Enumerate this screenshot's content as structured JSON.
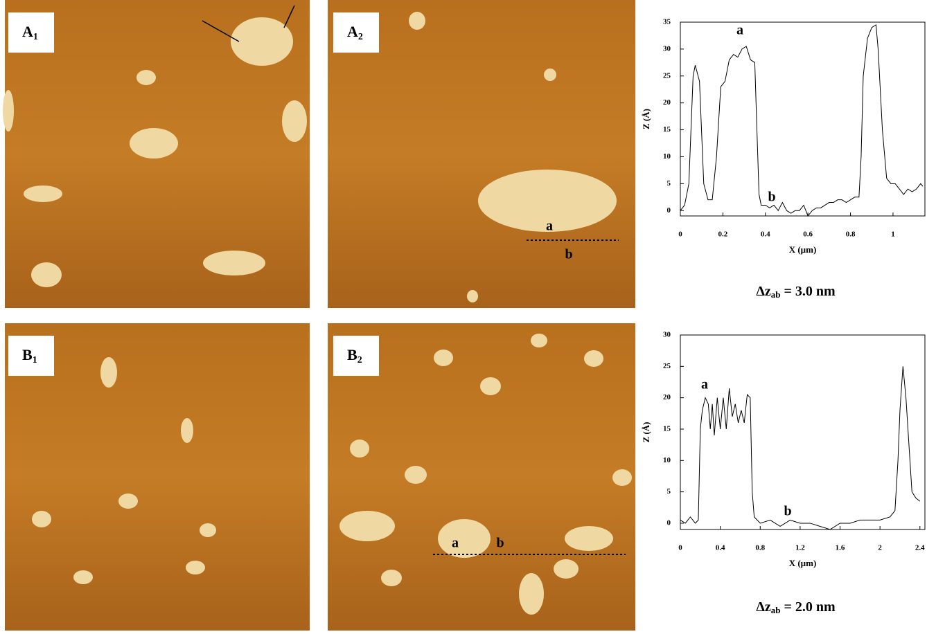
{
  "panels": [
    {
      "label": "A",
      "sub": "1"
    },
    {
      "label": "A",
      "sub": "2",
      "marks": [
        "a",
        "b"
      ]
    },
    {
      "label": "B",
      "sub": "1"
    },
    {
      "label": "B",
      "sub": "2",
      "marks": [
        "a",
        "b"
      ]
    }
  ],
  "chart_data": [
    {
      "type": "line",
      "xlabel": "X (µm)",
      "ylabel": "Z (Å)",
      "xlim": [
        0,
        1.15
      ],
      "xticks": [
        0,
        0.2,
        0.4,
        0.6,
        0.8,
        1
      ],
      "ylim": [
        -1,
        35
      ],
      "yticks": [
        0,
        5,
        10,
        15,
        20,
        25,
        30,
        35
      ],
      "annotations": [
        "a",
        "b"
      ],
      "note": {
        "prefix": "Δz",
        "sub": "ab",
        "suffix": "= 3.0 nm"
      },
      "color": "#000000",
      "x": [
        0,
        0.02,
        0.04,
        0.06,
        0.07,
        0.09,
        0.11,
        0.13,
        0.15,
        0.17,
        0.19,
        0.21,
        0.23,
        0.25,
        0.27,
        0.29,
        0.31,
        0.33,
        0.35,
        0.36,
        0.37,
        0.38,
        0.4,
        0.42,
        0.44,
        0.46,
        0.48,
        0.5,
        0.52,
        0.54,
        0.56,
        0.58,
        0.6,
        0.62,
        0.64,
        0.66,
        0.68,
        0.7,
        0.72,
        0.74,
        0.76,
        0.78,
        0.8,
        0.82,
        0.84,
        0.85,
        0.86,
        0.88,
        0.9,
        0.92,
        0.93,
        0.95,
        0.97,
        0.99,
        1.01,
        1.03,
        1.05,
        1.07,
        1.09,
        1.11,
        1.13,
        1.14
      ],
      "values": [
        0,
        1,
        5,
        25,
        27,
        24,
        5,
        2,
        2,
        10,
        23,
        24,
        28,
        29,
        28.5,
        30,
        30.5,
        28,
        27.5,
        15,
        3,
        1,
        1,
        0.5,
        1,
        0,
        1.5,
        0,
        -0.5,
        0,
        0,
        1,
        -1,
        0,
        0.5,
        0.5,
        1,
        1.5,
        1.5,
        2,
        2,
        1.5,
        2,
        2.5,
        2.5,
        10,
        25,
        32,
        34,
        34.5,
        30,
        15,
        6,
        5,
        5,
        4,
        3,
        4,
        3.5,
        4,
        5,
        4.5
      ]
    },
    {
      "type": "line",
      "xlabel": "X (µm)",
      "ylabel": "Z (Å)",
      "xlim": [
        0,
        2.45
      ],
      "xticks": [
        0,
        0.4,
        0.8,
        1.2,
        1.6,
        2,
        2.4
      ],
      "ylim": [
        -1,
        30
      ],
      "yticks": [
        0,
        5,
        10,
        15,
        20,
        25,
        30
      ],
      "annotations": [
        "a",
        "b"
      ],
      "note": {
        "prefix": "Δz",
        "sub": "ab",
        "suffix": "= 2.0 nm"
      },
      "color": "#000000",
      "x": [
        0,
        0.05,
        0.1,
        0.15,
        0.18,
        0.2,
        0.22,
        0.25,
        0.28,
        0.3,
        0.32,
        0.34,
        0.37,
        0.4,
        0.43,
        0.46,
        0.49,
        0.52,
        0.55,
        0.58,
        0.61,
        0.64,
        0.67,
        0.7,
        0.72,
        0.74,
        0.8,
        0.9,
        1.0,
        1.1,
        1.2,
        1.3,
        1.4,
        1.5,
        1.6,
        1.7,
        1.8,
        1.9,
        2.0,
        2.1,
        2.15,
        2.18,
        2.2,
        2.23,
        2.26,
        2.3,
        2.32,
        2.36,
        2.4
      ],
      "values": [
        0.5,
        0,
        1,
        0,
        0.5,
        15,
        18,
        20,
        19,
        15,
        19,
        14,
        20,
        15,
        20,
        15,
        21.5,
        17,
        19,
        16,
        18,
        16,
        20.5,
        20,
        5,
        1,
        0,
        0.5,
        -0.5,
        0.5,
        0,
        0,
        -0.5,
        -1,
        0,
        0,
        0.5,
        0.5,
        0.5,
        1,
        2,
        10,
        18,
        25,
        20,
        10,
        5,
        4,
        3.5
      ]
    }
  ]
}
